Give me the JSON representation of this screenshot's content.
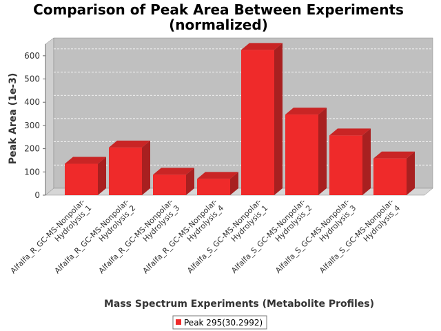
{
  "chart_data": {
    "type": "bar",
    "title_line1": "Comparison of Peak Area Between Experiments",
    "title_line2": "(normalized)",
    "xlabel": "Mass Spectrum Experiments (Metabolite Profiles)",
    "ylabel": "Peak Area (1e-3)",
    "ylim": [
      0,
      650
    ],
    "yticks": [
      0,
      100,
      200,
      300,
      400,
      500,
      600
    ],
    "grid": true,
    "legend_position": "bottom",
    "series": [
      {
        "name": "Peak 295(30.2992)",
        "color": "#ef2a2a",
        "values": [
          135,
          205,
          88,
          70,
          625,
          347,
          257,
          158
        ]
      }
    ],
    "categories": [
      {
        "line1": "Alfalfa_R_GC-MS-Nonpolar-",
        "line2": "Hydrolysis_1"
      },
      {
        "line1": "Alfalfa_R_GC-MS-Nonpolar-",
        "line2": "Hydrolysis_2"
      },
      {
        "line1": "Alfalfa_R_GC-MS-Nonpolar-",
        "line2": "Hydrolysis_3"
      },
      {
        "line1": "Alfalfa_R_GC-MS-Nonpolar-",
        "line2": "Hydrolysis_4"
      },
      {
        "line1": "Alfalfa_S_GC-MS-Nonpolar-",
        "line2": "Hydrolysis_1"
      },
      {
        "line1": "Alfalfa_S_GC-MS-Nonpolar-",
        "line2": "Hydrolysis_2"
      },
      {
        "line1": "Alfalfa_S_GC-MS-Nonpolar-",
        "line2": "Hydrolysis_3"
      },
      {
        "line1": "Alfalfa_S_GC-MS-Nonpolar-",
        "line2": "Hydrolysis_4"
      }
    ]
  }
}
